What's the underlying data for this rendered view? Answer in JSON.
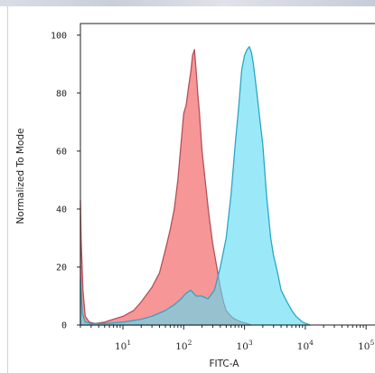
{
  "chart_data": {
    "type": "area",
    "xlabel": "FITC-A",
    "ylabel": "Normalized To Mode",
    "x_scale": "log",
    "xlim": [
      2,
      140000
    ],
    "ylim": [
      0,
      104
    ],
    "grid": false,
    "y_ticks": [
      "0",
      "20",
      "40",
      "60",
      "80",
      "100"
    ],
    "y_tick_values": [
      0,
      20,
      40,
      60,
      80,
      100
    ],
    "x_ticks": [
      {
        "value": 10,
        "base": "10",
        "exp": "1"
      },
      {
        "value": 100,
        "base": "10",
        "exp": "2"
      },
      {
        "value": 1000,
        "base": "10",
        "exp": "3"
      },
      {
        "value": 10000,
        "base": "10",
        "exp": "4"
      },
      {
        "value": 100000,
        "base": "10",
        "exp": "5"
      }
    ],
    "series": [
      {
        "color": "#f47f7f",
        "stroke": "#b5505a",
        "x": [
          2,
          2.05,
          2.2,
          2.4,
          2.8,
          3.5,
          5,
          7,
          10,
          15,
          20,
          30,
          40,
          50,
          60,
          70,
          80,
          90,
          100,
          110,
          120,
          130,
          140,
          150,
          160,
          170,
          180,
          200,
          230,
          260,
          300,
          350,
          400,
          450,
          500,
          600,
          700,
          900,
          1100,
          1300
        ],
        "y": [
          43,
          30,
          12,
          3,
          1,
          0.5,
          1,
          2,
          3,
          5,
          8,
          13,
          18,
          26,
          33,
          40,
          50,
          62,
          73,
          76,
          82,
          87,
          93,
          95,
          88,
          80,
          74,
          60,
          48,
          38,
          28,
          20,
          13,
          8,
          5,
          3,
          2,
          1,
          0.5,
          0
        ]
      },
      {
        "color": "#5ddcf4",
        "stroke": "#2ba6c6",
        "x": [
          2,
          2.05,
          2.15,
          2.4,
          3,
          5,
          10,
          20,
          30,
          50,
          70,
          90,
          110,
          130,
          160,
          200,
          250,
          320,
          400,
          500,
          600,
          700,
          800,
          900,
          1000,
          1100,
          1200,
          1300,
          1400,
          1500,
          1700,
          2000,
          2300,
          2700,
          3000,
          3500,
          4000,
          5000,
          6000,
          7000,
          9000,
          12000
        ],
        "y": [
          16,
          12,
          4,
          1,
          0.5,
          0.5,
          1,
          2,
          3,
          5,
          7,
          9,
          11,
          12,
          10,
          10,
          9,
          12,
          20,
          30,
          45,
          62,
          75,
          88,
          93,
          95,
          96,
          94,
          90,
          85,
          75,
          62,
          45,
          30,
          24,
          18,
          12,
          8,
          5,
          3,
          1,
          0
        ]
      }
    ]
  }
}
